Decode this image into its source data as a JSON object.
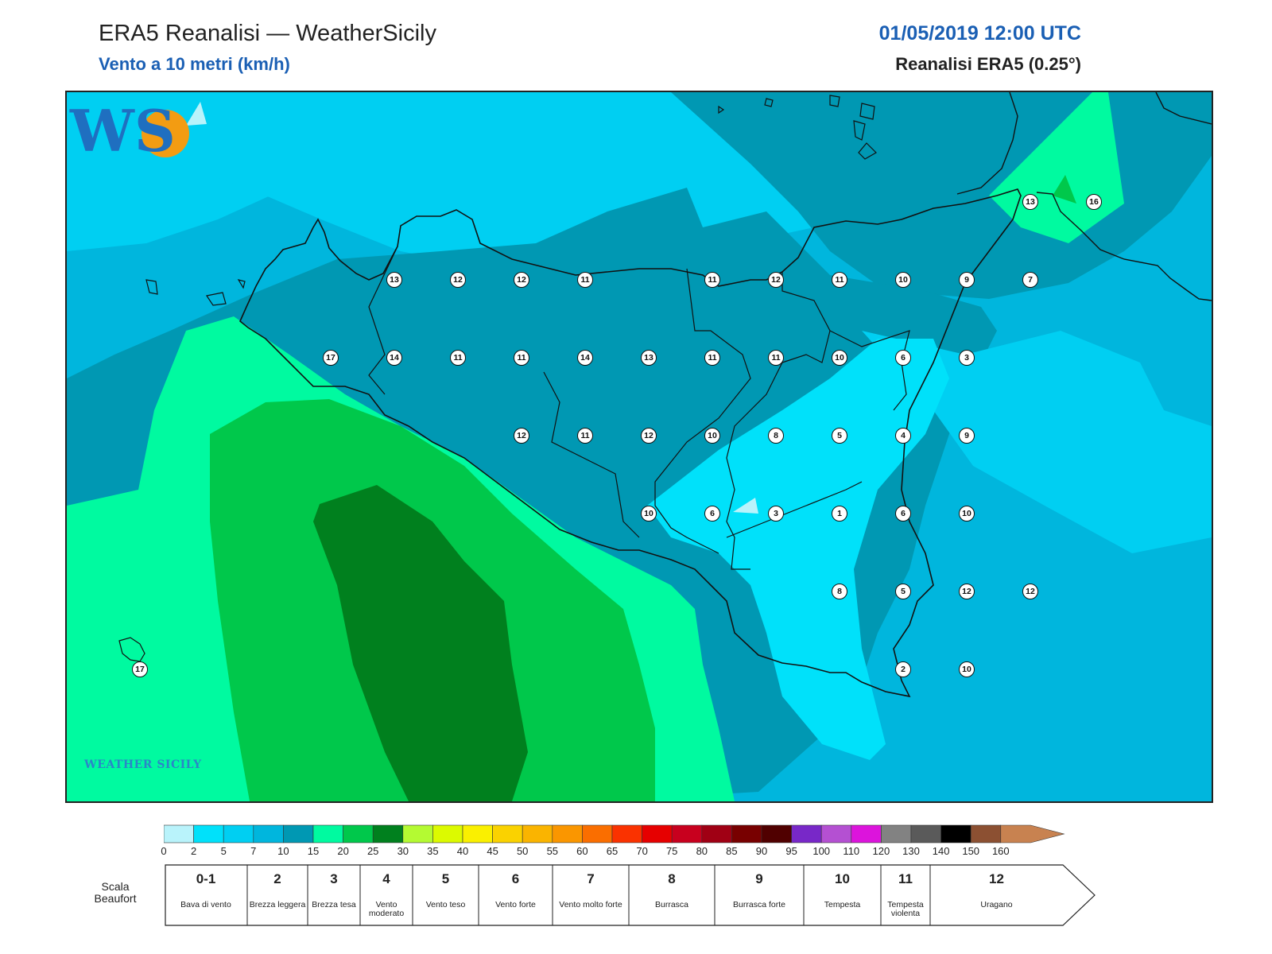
{
  "header": {
    "title": "ERA5 Reanalisi — WeatherSicily",
    "subtitle": "Vento a 10 metri (km/h)",
    "datetime": "01/05/2019 12:00 UTC",
    "source": "Reanalisi ERA5 (0.25°)"
  },
  "logo": {
    "text": "WEATHER SICILY",
    "mark": "WS"
  },
  "stations": [
    {
      "value": "13",
      "lon": 12.875,
      "lat": 38.125
    },
    {
      "value": "12",
      "lon": 13.125,
      "lat": 38.125
    },
    {
      "value": "12",
      "lon": 13.375,
      "lat": 38.125
    },
    {
      "value": "11",
      "lon": 13.625,
      "lat": 38.125
    },
    {
      "value": "11",
      "lon": 14.125,
      "lat": 38.125
    },
    {
      "value": "12",
      "lon": 14.375,
      "lat": 38.125
    },
    {
      "value": "11",
      "lon": 14.625,
      "lat": 38.125
    },
    {
      "value": "10",
      "lon": 14.875,
      "lat": 38.125
    },
    {
      "value": "9",
      "lon": 15.125,
      "lat": 38.125
    },
    {
      "value": "7",
      "lon": 15.375,
      "lat": 38.125
    },
    {
      "value": "17",
      "lon": 12.625,
      "lat": 37.875
    },
    {
      "value": "14",
      "lon": 12.875,
      "lat": 37.875
    },
    {
      "value": "11",
      "lon": 13.125,
      "lat": 37.875
    },
    {
      "value": "11",
      "lon": 13.375,
      "lat": 37.875
    },
    {
      "value": "14",
      "lon": 13.625,
      "lat": 37.875
    },
    {
      "value": "13",
      "lon": 13.875,
      "lat": 37.875
    },
    {
      "value": "11",
      "lon": 14.125,
      "lat": 37.875
    },
    {
      "value": "11",
      "lon": 14.375,
      "lat": 37.875
    },
    {
      "value": "10",
      "lon": 14.625,
      "lat": 37.875
    },
    {
      "value": "6",
      "lon": 14.875,
      "lat": 37.875
    },
    {
      "value": "3",
      "lon": 15.125,
      "lat": 37.875
    },
    {
      "value": "12",
      "lon": 13.375,
      "lat": 37.625
    },
    {
      "value": "11",
      "lon": 13.625,
      "lat": 37.625
    },
    {
      "value": "12",
      "lon": 13.875,
      "lat": 37.625
    },
    {
      "value": "10",
      "lon": 14.125,
      "lat": 37.625
    },
    {
      "value": "8",
      "lon": 14.375,
      "lat": 37.625
    },
    {
      "value": "5",
      "lon": 14.625,
      "lat": 37.625
    },
    {
      "value": "4",
      "lon": 14.875,
      "lat": 37.625
    },
    {
      "value": "9",
      "lon": 15.125,
      "lat": 37.625
    },
    {
      "value": "10",
      "lon": 13.875,
      "lat": 37.375
    },
    {
      "value": "6",
      "lon": 14.125,
      "lat": 37.375
    },
    {
      "value": "3",
      "lon": 14.375,
      "lat": 37.375
    },
    {
      "value": "1",
      "lon": 14.625,
      "lat": 37.375
    },
    {
      "value": "6",
      "lon": 14.875,
      "lat": 37.375
    },
    {
      "value": "10",
      "lon": 15.125,
      "lat": 37.375
    },
    {
      "value": "8",
      "lon": 14.625,
      "lat": 37.125
    },
    {
      "value": "5",
      "lon": 14.875,
      "lat": 37.125
    },
    {
      "value": "12",
      "lon": 15.125,
      "lat": 37.125
    },
    {
      "value": "12",
      "lon": 15.375,
      "lat": 37.125
    },
    {
      "value": "2",
      "lon": 14.875,
      "lat": 36.875
    },
    {
      "value": "10",
      "lon": 15.125,
      "lat": 36.875
    },
    {
      "value": "13",
      "lon": 15.375,
      "lat": 38.375
    },
    {
      "value": "16",
      "lon": 15.625,
      "lat": 38.375
    },
    {
      "value": "17",
      "lon": 11.875,
      "lat": 36.875
    }
  ],
  "colorbar": {
    "ticks": [
      "0",
      "2",
      "5",
      "7",
      "10",
      "15",
      "20",
      "25",
      "30",
      "35",
      "40",
      "45",
      "50",
      "55",
      "60",
      "65",
      "70",
      "75",
      "80",
      "85",
      "90",
      "95",
      "100",
      "110",
      "120",
      "130",
      "140",
      "150",
      "160"
    ],
    "colors": [
      "#b9f3fb",
      "#00e1fa",
      "#00cff2",
      "#00b6dd",
      "#0098b3",
      "#00faa0",
      "#00c84b",
      "#00801e",
      "#b4fa32",
      "#dcfa00",
      "#faf000",
      "#fad200",
      "#fab400",
      "#fa9600",
      "#fa6e00",
      "#fa3200",
      "#e60000",
      "#c8001e",
      "#a00014",
      "#780000",
      "#500000",
      "#7828c8",
      "#b450d2",
      "#dc14dc",
      "#828282",
      "#5a5a5a",
      "#000000",
      "#8c5032",
      "#c88250"
    ]
  },
  "beaufort": {
    "label": "Scala Beaufort",
    "classes": [
      {
        "num": "0-1",
        "desc": "Bava di vento"
      },
      {
        "num": "2",
        "desc": "Brezza leggera"
      },
      {
        "num": "3",
        "desc": "Brezza tesa"
      },
      {
        "num": "4",
        "desc": "Vento moderato"
      },
      {
        "num": "5",
        "desc": "Vento teso"
      },
      {
        "num": "6",
        "desc": "Vento forte"
      },
      {
        "num": "7",
        "desc": "Vento molto forte"
      },
      {
        "num": "8",
        "desc": "Burrasca"
      },
      {
        "num": "9",
        "desc": "Burrasca forte"
      },
      {
        "num": "10",
        "desc": "Tempesta"
      },
      {
        "num": "11",
        "desc": "Tempesta violenta"
      },
      {
        "num": "12",
        "desc": "Uragano"
      }
    ]
  }
}
